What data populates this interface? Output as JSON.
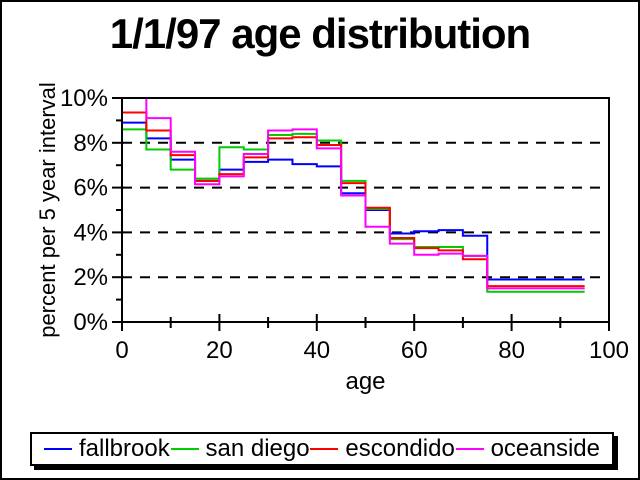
{
  "window": {
    "background": "#ffffff",
    "border_color": "#000000"
  },
  "title": "1/1/97 age distribution",
  "chart_data": {
    "type": "line",
    "step": true,
    "title": "1/1/97 age distribution",
    "xlabel": "age",
    "ylabel": "percent per 5 year interval",
    "xlim": [
      0,
      100
    ],
    "ylim": [
      0,
      10
    ],
    "x_major_ticks": [
      0,
      20,
      40,
      60,
      80,
      100
    ],
    "x_minor_ticks": [
      10,
      30,
      50,
      70,
      90
    ],
    "x_tick_labels": [
      "0",
      "20",
      "40",
      "60",
      "80",
      "100"
    ],
    "y_major_ticks": [
      0,
      2,
      4,
      6,
      8,
      10
    ],
    "y_minor_ticks": [
      1,
      3,
      5,
      7,
      9
    ],
    "y_tick_labels": [
      "0%",
      "2%",
      "4%",
      "6%",
      "8%",
      "10%"
    ],
    "gridlines_y": [
      2,
      4,
      6,
      8
    ],
    "grid_style": "dashed",
    "legend_position": "bottom",
    "frame": true,
    "bin_width": 5,
    "bin_starts": [
      0,
      5,
      10,
      15,
      20,
      25,
      30,
      35,
      40,
      45,
      50,
      55,
      60,
      65,
      70,
      75,
      80,
      85,
      90
    ],
    "series": [
      {
        "name": "fallbrook",
        "color": "#0000ff",
        "values": [
          8.9,
          8.2,
          7.25,
          6.3,
          6.8,
          7.15,
          7.25,
          7.05,
          6.95,
          5.75,
          5.0,
          3.95,
          4.05,
          4.1,
          3.85,
          1.9,
          1.9,
          1.9,
          1.9
        ]
      },
      {
        "name": "san diego",
        "color": "#00cc00",
        "values": [
          8.6,
          7.7,
          6.8,
          6.4,
          7.8,
          7.7,
          8.35,
          8.4,
          8.1,
          6.3,
          5.05,
          3.7,
          3.35,
          3.35,
          2.95,
          1.35,
          1.35,
          1.35,
          1.35
        ]
      },
      {
        "name": "escondido",
        "color": "#ff0000",
        "values": [
          9.35,
          8.55,
          7.45,
          6.3,
          6.6,
          7.35,
          8.2,
          8.25,
          7.9,
          6.2,
          5.1,
          3.75,
          3.3,
          3.2,
          2.8,
          1.6,
          1.6,
          1.6,
          1.6
        ]
      },
      {
        "name": "oceanside",
        "color": "#ff00ff",
        "values": [
          10.0,
          9.1,
          7.6,
          6.15,
          6.5,
          7.5,
          8.55,
          8.6,
          7.75,
          5.65,
          4.25,
          3.5,
          3.0,
          3.05,
          2.95,
          1.5,
          1.5,
          1.5,
          1.5
        ]
      }
    ]
  }
}
